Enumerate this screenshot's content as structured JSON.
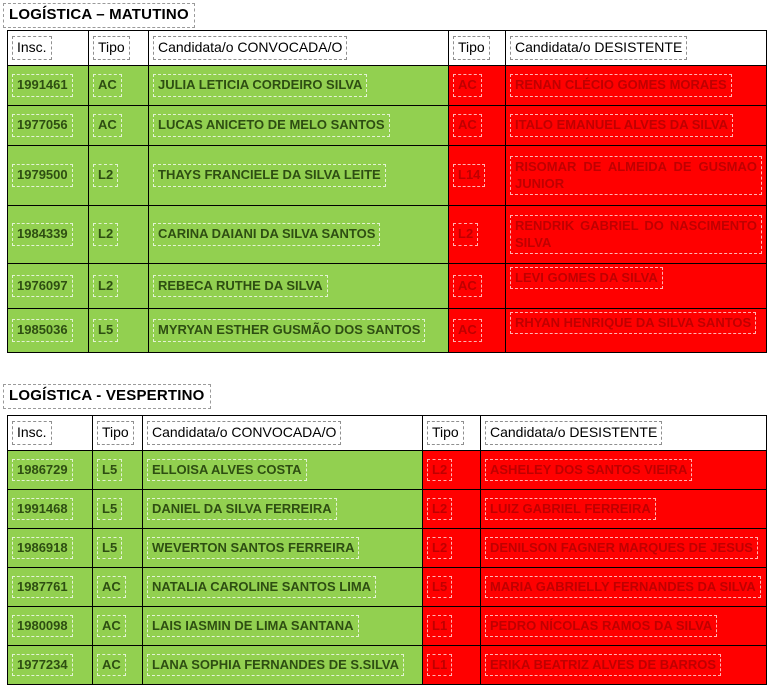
{
  "colors": {
    "convoked_bg": "#92d050",
    "convoked_text": "#2e4e12",
    "withdrawn_bg": "#ff0000",
    "withdrawn_text": "#bf0000",
    "border": "#000000"
  },
  "tables": [
    {
      "title": "LOGÍSTICA – MATUTINO",
      "headers": {
        "insc": "Insc.",
        "tipo_conv": "Tipo",
        "convocada": "Candidata/o CONVOCADA/O",
        "tipo_des": "Tipo",
        "desistente": "Candidata/o DESISTENTE"
      },
      "rows": [
        {
          "insc": "1991461",
          "tipo": "AC",
          "convocada": "JULIA LETICIA CORDEIRO SILVA",
          "tipo_des": "AC",
          "desistente": "RENAN CLÉCIO GOMES MORAES"
        },
        {
          "insc": "1977056",
          "tipo": "AC",
          "convocada": "LUCAS ANICETO DE MELO SANTOS",
          "tipo_des": "AC",
          "desistente": "ITALO EMANUEL ALVES DA SILVA"
        },
        {
          "insc": "1979500",
          "tipo": "L2",
          "convocada": "THAYS FRANCIELE DA SILVA LEITE",
          "tipo_des": "L14",
          "desistente": "RISOMAR DE ALMEIDA DE GUSMAO JUNIOR"
        },
        {
          "insc": "1984339",
          "tipo": "L2",
          "convocada": "CARINA DAIANI DA SILVA SANTOS",
          "tipo_des": "L2",
          "desistente": "RENDRIK GABRIEL DO NASCIMENTO SILVA"
        },
        {
          "insc": "1976097",
          "tipo": "L2",
          "convocada": "REBECA RUTHE DA SILVA",
          "tipo_des": "AC",
          "desistente": "LEVI GOMES DA SILVA"
        },
        {
          "insc": "1985036",
          "tipo": "L5",
          "convocada": "MYRYAN ESTHER GUSMÃO DOS SANTOS",
          "tipo_des": "AC",
          "desistente": "RHYAN HENRIQUE DA SILVA SANTOS"
        }
      ]
    },
    {
      "title": "LOGÍSTICA - VESPERTINO",
      "headers": {
        "insc": "Insc.",
        "tipo_conv": "Tipo",
        "convocada": "Candidata/o CONVOCADA/O",
        "tipo_des": "Tipo",
        "desistente": "Candidata/o DESISTENTE"
      },
      "rows": [
        {
          "insc": "1986729",
          "tipo": "L5",
          "convocada": "ELLOISA ALVES COSTA",
          "tipo_des": "L2",
          "desistente": "ASHELEY DOS SANTOS VIEIRA"
        },
        {
          "insc": "1991468",
          "tipo": "L5",
          "convocada": "DANIEL DA SILVA FERREIRA",
          "tipo_des": "L2",
          "desistente": "LUIZ GABRIEL FERREIRA"
        },
        {
          "insc": "1986918",
          "tipo": "L5",
          "convocada": "WEVERTON SANTOS FERREIRA",
          "tipo_des": "L2",
          "desistente": "DENILSON FAGNER MARQUES DE JESUS"
        },
        {
          "insc": "1987761",
          "tipo": "AC",
          "convocada": "NATALIA CAROLINE SANTOS LIMA",
          "tipo_des": "L5",
          "desistente": "MARIA GABRIELLY FERNANDES DA SILVA"
        },
        {
          "insc": "1980098",
          "tipo": "AC",
          "convocada": "LAIS IASMIN DE LIMA SANTANA",
          "tipo_des": "L1",
          "desistente": "PEDRO NÍCOLAS RAMOS DA SILVA"
        },
        {
          "insc": "1977234",
          "tipo": "AC",
          "convocada": "LANA SOPHIA FERNANDES DE S.SILVA",
          "tipo_des": "L1",
          "desistente": "ERIKA BEATRIZ ALVES DE BARROS"
        }
      ]
    }
  ]
}
